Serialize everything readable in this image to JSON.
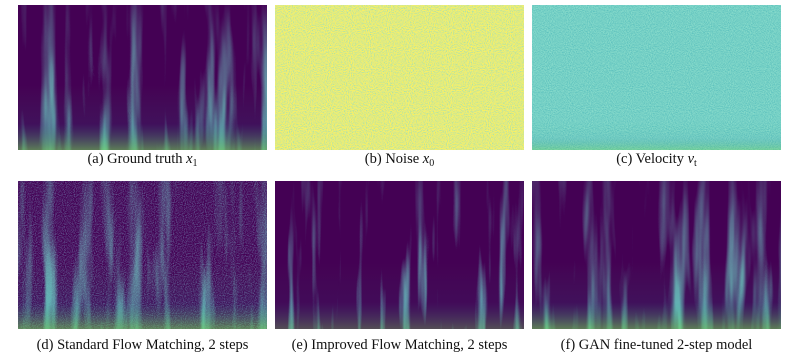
{
  "panels": [
    {
      "label": "(a) Ground truth",
      "symbol": "x",
      "subscript": "1",
      "style": "spectrogram"
    },
    {
      "label": "(b) Noise",
      "symbol": "x",
      "subscript": "0",
      "style": "noise"
    },
    {
      "label": "(c) Velocity",
      "symbol": "v",
      "subscript": "t",
      "style": "velocity"
    },
    {
      "label": "(d) Standard Flow Matching, 2 steps",
      "style": "noisy-spectrogram"
    },
    {
      "label": "(e) Improved Flow Matching, 2 steps",
      "style": "sparse-spectrogram"
    },
    {
      "label": "(f) GAN fine-tuned 2-step model",
      "style": "spectrogram"
    }
  ]
}
